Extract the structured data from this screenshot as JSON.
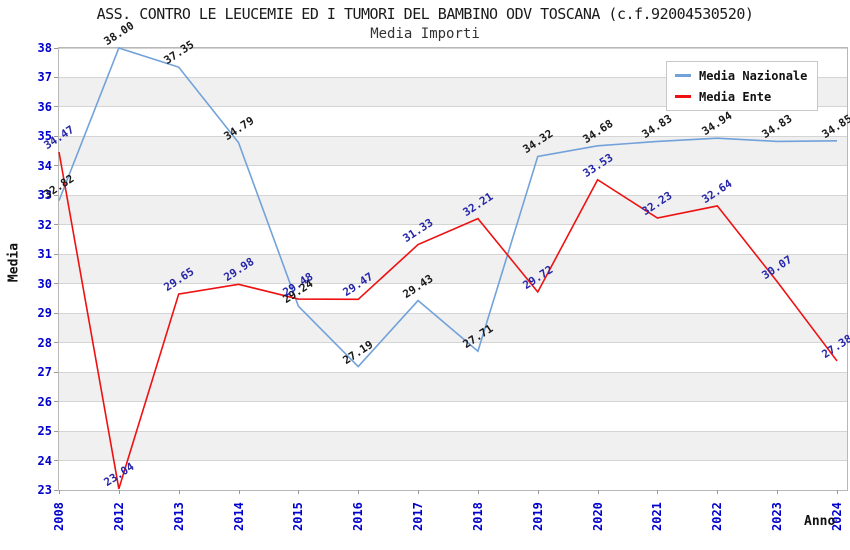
{
  "header": {
    "title": "ASS. CONTRO LE LEUCEMIE ED I TUMORI DEL BAMBINO ODV TOSCANA (c.f.92004530520)",
    "subtitle": "Media Importi"
  },
  "chart_data": {
    "type": "line",
    "title": "ASS. CONTRO LE LEUCEMIE ED I TUMORI DEL BAMBINO ODV TOSCANA (c.f.92004530520)",
    "subtitle": "Media Importi",
    "xlabel": "Anno",
    "ylabel": "Media",
    "x": [
      "2008",
      "2012",
      "2013",
      "2014",
      "2015",
      "2016",
      "2017",
      "2018",
      "2019",
      "2020",
      "2021",
      "2022",
      "2023",
      "2024"
    ],
    "series": [
      {
        "name": "Media Nazionale",
        "color": "#72a2d9",
        "label_color": "#1a1a1a",
        "values": [
          32.82,
          38.0,
          37.35,
          34.79,
          29.24,
          27.19,
          29.43,
          27.71,
          34.32,
          34.68,
          34.83,
          34.94,
          34.83,
          34.85
        ]
      },
      {
        "name": "Media Ente",
        "color": "#ee1111",
        "label_color": "#2626aa",
        "values": [
          34.47,
          23.04,
          29.65,
          29.98,
          29.48,
          29.47,
          31.33,
          32.21,
          29.72,
          33.53,
          32.23,
          32.64,
          30.07,
          27.38
        ]
      }
    ],
    "ylim": [
      23,
      38
    ],
    "ytick_step": 1,
    "grid": true,
    "legend_position": "top-right",
    "styles": {
      "tick_label_color": "#0000cc",
      "band_fill": "#f0f0f0",
      "grid_color": "#d4d4d4"
    }
  }
}
